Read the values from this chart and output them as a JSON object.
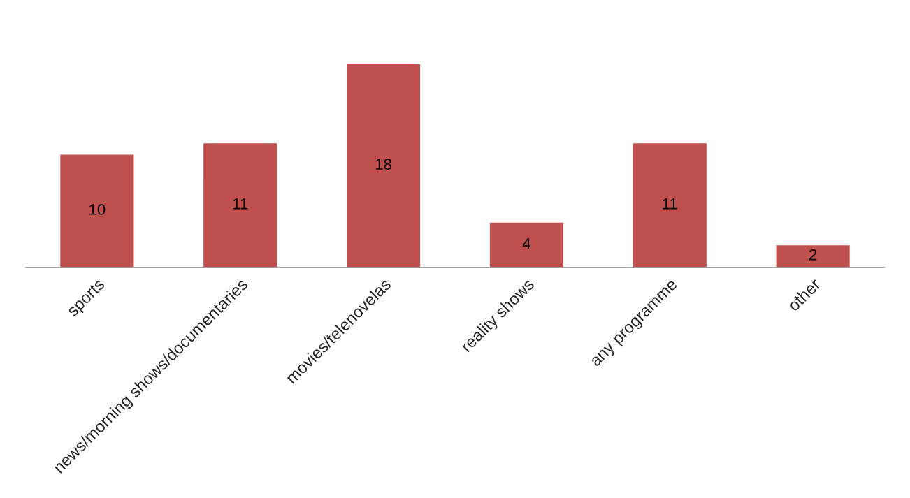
{
  "chart_data": {
    "type": "bar",
    "categories": [
      "sports",
      "news/morning shows/documentaries",
      "movies/telenovelas",
      "reality shows",
      "any programme",
      "other"
    ],
    "values": [
      10,
      11,
      18,
      4,
      11,
      2
    ],
    "color": "#c0504d",
    "data_labels": true,
    "grid": false,
    "legend": false
  }
}
